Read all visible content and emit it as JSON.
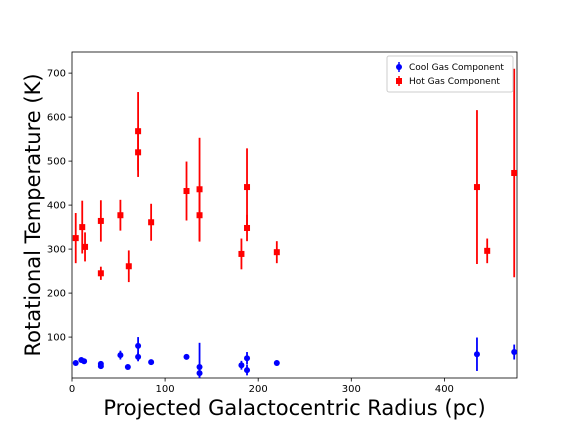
{
  "chart_data": {
    "type": "errorbar_scatter",
    "xlabel": "Projected Galactocentric Radius (pc)",
    "ylabel": "Rotational Temperature (K)",
    "xlim": [
      0,
      478
    ],
    "ylim": [
      7,
      748
    ],
    "xticks": [
      0,
      100,
      200,
      300,
      400
    ],
    "yticks": [
      100,
      200,
      300,
      400,
      500,
      600,
      700
    ],
    "legend": "upper right",
    "series": [
      {
        "name": "Cool Gas Component",
        "color": "#0000ff",
        "marker": "circle",
        "x": [
          4,
          10,
          13,
          31,
          31,
          52,
          60,
          71,
          71,
          85,
          123,
          137,
          137,
          182,
          188,
          188,
          220,
          435,
          475
        ],
        "values": [
          41,
          48,
          45,
          39,
          34,
          59,
          32,
          80,
          55,
          43,
          55,
          32,
          18,
          36,
          52,
          25,
          41,
          61,
          66
        ],
        "errors": [
          4,
          4,
          4,
          6,
          6,
          10,
          5,
          20,
          10,
          5,
          5,
          55,
          10,
          10,
          14,
          12,
          6,
          38,
          17
        ]
      },
      {
        "name": "Hot Gas Component",
        "color": "#ff0000",
        "marker": "square",
        "x": [
          4,
          11,
          14,
          31,
          31,
          52,
          61,
          71,
          71,
          85,
          123,
          137,
          137,
          182,
          188,
          188,
          220,
          435,
          446,
          475
        ],
        "values": [
          325,
          350,
          305,
          364,
          245,
          377,
          261,
          568,
          520,
          361,
          432,
          436,
          377,
          289,
          441,
          348,
          293,
          441,
          296,
          473
        ],
        "errors": [
          57,
          60,
          33,
          47,
          15,
          35,
          36,
          89,
          56,
          42,
          67,
          117,
          60,
          35,
          88,
          30,
          25,
          175,
          28,
          237
        ]
      }
    ]
  }
}
